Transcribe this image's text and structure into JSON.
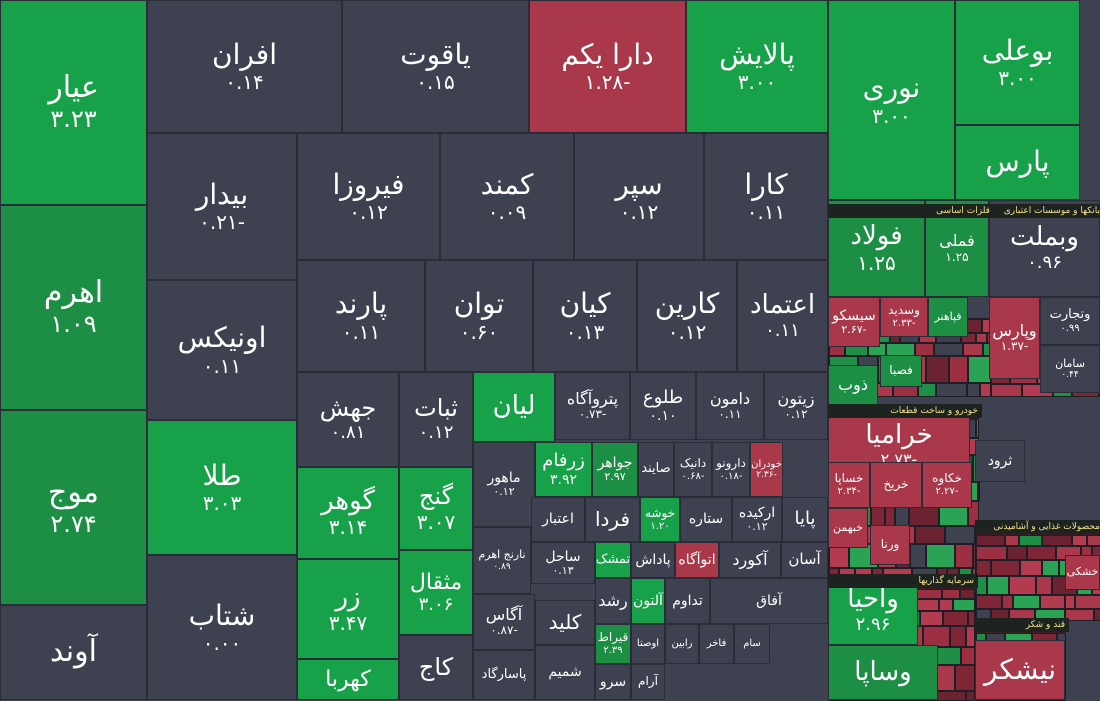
{
  "chart_data": {
    "type": "treemap",
    "colors": {
      "positive_strong": "#17a24a",
      "positive": "#1c8f45",
      "neutral": "#3d4150",
      "negative": "#a8384a",
      "sector_title_bg": "#1d2420",
      "sector_title_text": "#f3e08a"
    },
    "tiles": [
      {
        "name": "عیار",
        "value": "۳.۲۳",
        "c": "positive_strong"
      },
      {
        "name": "اهرم",
        "value": "۱.۰۹",
        "c": "positive"
      },
      {
        "name": "موج",
        "value": "۲.۷۴",
        "c": "positive"
      },
      {
        "name": "آوند",
        "value": "",
        "c": "neutral"
      },
      {
        "name": "افران",
        "value": "۰.۱۴",
        "c": "neutral"
      },
      {
        "name": "یاقوت",
        "value": "۰.۱۵",
        "c": "neutral"
      },
      {
        "name": "دارا یکم",
        "value": "-۱.۲۸",
        "c": "negative"
      },
      {
        "name": "پالایش",
        "value": "۳.۰۰",
        "c": "positive_strong"
      },
      {
        "name": "نوری",
        "value": "۳.۰۰",
        "c": "positive_strong"
      },
      {
        "name": "بوعلی",
        "value": "۳.۰۰",
        "c": "positive_strong"
      },
      {
        "name": "پارس",
        "value": "",
        "c": "positive_strong"
      },
      {
        "name": "بیدار",
        "value": "-۰.۲۱",
        "c": "neutral"
      },
      {
        "name": "فیروزا",
        "value": "۰.۱۲",
        "c": "neutral"
      },
      {
        "name": "کمند",
        "value": "۰.۰۹",
        "c": "neutral"
      },
      {
        "name": "سپر",
        "value": "۰.۱۲",
        "c": "neutral"
      },
      {
        "name": "کارا",
        "value": "۰.۱۱",
        "c": "neutral"
      },
      {
        "name": "اونیکس",
        "value": "۰.۱۱",
        "c": "neutral"
      },
      {
        "name": "پارند",
        "value": "۰.۱۱",
        "c": "neutral"
      },
      {
        "name": "توان",
        "value": "۰.۶۰",
        "c": "neutral"
      },
      {
        "name": "کیان",
        "value": "۰.۱۳",
        "c": "neutral"
      },
      {
        "name": "کارین",
        "value": "۰.۱۲",
        "c": "neutral"
      },
      {
        "name": "اعتماد",
        "value": "۰.۱۱",
        "c": "neutral"
      },
      {
        "name": "طلا",
        "value": "۳.۰۳",
        "c": "positive_strong"
      },
      {
        "name": "شتاب",
        "value": "۰.۰۰",
        "c": "neutral"
      },
      {
        "name": "جهش",
        "value": "۰.۸۱",
        "c": "neutral"
      },
      {
        "name": "ثبات",
        "value": "۰.۱۲",
        "c": "neutral"
      },
      {
        "name": "لیان",
        "value": "",
        "c": "positive_strong"
      },
      {
        "name": "پتروآگاه",
        "value": "-۰.۷۳",
        "c": "neutral"
      },
      {
        "name": "طلوع",
        "value": "۰.۱۰",
        "c": "neutral"
      },
      {
        "name": "دامون",
        "value": "۰.۱۱",
        "c": "neutral"
      },
      {
        "name": "زیتون",
        "value": "۰.۱۲",
        "c": "neutral"
      },
      {
        "name": "گوهر",
        "value": "۳.۱۴",
        "c": "positive_strong"
      },
      {
        "name": "گنج",
        "value": "۳.۰۷",
        "c": "positive_strong"
      },
      {
        "name": "زر",
        "value": "۳.۴۷",
        "c": "positive_strong"
      },
      {
        "name": "مثقال",
        "value": "۳.۰۶",
        "c": "positive_strong"
      },
      {
        "name": "کهربا",
        "value": "",
        "c": "positive_strong"
      },
      {
        "name": "کاج",
        "value": "",
        "c": "neutral"
      },
      {
        "name": "ماهور",
        "value": "۰.۱۲",
        "c": "neutral"
      },
      {
        "name": "زرفام",
        "value": "۳.۹۲",
        "c": "positive_strong"
      },
      {
        "name": "جواهر",
        "value": "۲.۹۷",
        "c": "positive"
      },
      {
        "name": "صایند",
        "value": "",
        "c": "neutral"
      },
      {
        "name": "دانیک",
        "value": "-۰.۶۸",
        "c": "neutral"
      },
      {
        "name": "دارونو",
        "value": "-۰.۱۸",
        "c": "neutral"
      },
      {
        "name": "خودران",
        "value": "-۲.۳۶",
        "c": "negative"
      },
      {
        "name": "نارنج اهرم",
        "value": "۰.۸۹",
        "c": "neutral"
      },
      {
        "name": "اعتبار",
        "value": "",
        "c": "neutral"
      },
      {
        "name": "فردا",
        "value": "",
        "c": "neutral"
      },
      {
        "name": "خوشه",
        "value": "۱.۲۰",
        "c": "positive_strong"
      },
      {
        "name": "ستاره",
        "value": "",
        "c": "neutral"
      },
      {
        "name": "ارکیده",
        "value": "۰.۱۲",
        "c": "neutral"
      },
      {
        "name": "پایا",
        "value": "",
        "c": "neutral"
      },
      {
        "name": "ساحل",
        "value": "۰.۱۳",
        "c": "neutral"
      },
      {
        "name": "تمشک",
        "value": "",
        "c": "positive_strong"
      },
      {
        "name": "پاداش",
        "value": "",
        "c": "neutral"
      },
      {
        "name": "اتوآگاه",
        "value": "",
        "c": "negative"
      },
      {
        "name": "آکورد",
        "value": "",
        "c": "neutral"
      },
      {
        "name": "آسان",
        "value": "",
        "c": "neutral"
      },
      {
        "name": "آگاس",
        "value": "-۰.۸۷",
        "c": "neutral"
      },
      {
        "name": "رشد",
        "value": "",
        "c": "neutral"
      },
      {
        "name": "آلتون",
        "value": "",
        "c": "positive_strong"
      },
      {
        "name": "تداوم",
        "value": "",
        "c": "neutral"
      },
      {
        "name": "آفاق",
        "value": "",
        "c": "neutral"
      },
      {
        "name": "کلید",
        "value": "",
        "c": "neutral"
      },
      {
        "name": "قیراط",
        "value": "۲.۳۹",
        "c": "positive"
      },
      {
        "name": "اوصتا",
        "value": "",
        "c": "neutral"
      },
      {
        "name": "رابین",
        "value": "",
        "c": "neutral"
      },
      {
        "name": "فاخر",
        "value": "",
        "c": "neutral"
      },
      {
        "name": "سام",
        "value": "",
        "c": "neutral"
      },
      {
        "name": "شمیم",
        "value": "",
        "c": "neutral"
      },
      {
        "name": "پاسارگاد",
        "value": "",
        "c": "neutral"
      },
      {
        "name": "سرو",
        "value": "",
        "c": "neutral"
      },
      {
        "name": "آرام",
        "value": "",
        "c": "neutral"
      },
      {
        "name": "فولاد",
        "value": "۱.۲۵",
        "c": "positive"
      },
      {
        "name": "فملی",
        "value": "۱.۲۵",
        "c": "positive"
      },
      {
        "name": "وبملت",
        "value": "۰.۹۶",
        "c": "neutral"
      },
      {
        "name": "سیسکو",
        "value": "-۲.۶۷",
        "c": "negative"
      },
      {
        "name": "وسدید",
        "value": "-۲.۳۳",
        "c": "negative"
      },
      {
        "name": "فپاهنر",
        "value": "",
        "c": "positive"
      },
      {
        "name": "وتجارت",
        "value": "۰.۹۹",
        "c": "neutral"
      },
      {
        "name": "وپارس",
        "value": "-۱.۳۷",
        "c": "negative"
      },
      {
        "name": "سامان",
        "value": "۰.۴۴",
        "c": "neutral"
      },
      {
        "name": "فصبا",
        "value": "",
        "c": "positive"
      },
      {
        "name": "ذوب",
        "value": "",
        "c": "positive"
      },
      {
        "name": "خرامیا",
        "value": "-۲.۷۳",
        "c": "negative"
      },
      {
        "name": "خساپا",
        "value": "-۲.۳۴",
        "c": "negative"
      },
      {
        "name": "خریخ",
        "value": "",
        "c": "negative"
      },
      {
        "name": "خکاوه",
        "value": "-۲.۲۷",
        "c": "negative"
      },
      {
        "name": "خبهمن",
        "value": "",
        "c": "negative"
      },
      {
        "name": "ورنا",
        "value": "",
        "c": "negative"
      },
      {
        "name": "ثرود",
        "value": "",
        "c": "neutral"
      },
      {
        "name": "واحیا",
        "value": "۲.۹۶",
        "c": "positive_strong"
      },
      {
        "name": "وساپا",
        "value": "",
        "c": "positive"
      },
      {
        "name": "نیشکر",
        "value": "",
        "c": "negative"
      },
      {
        "name": "خشکی",
        "value": "",
        "c": "negative"
      }
    ],
    "sectors": [
      {
        "label": "فلزات اساسی"
      },
      {
        "label": "بانکها و موسسات اعتباری"
      },
      {
        "label": "خودرو و ساخت قطعات"
      },
      {
        "label": "سرمایه گذاریها"
      },
      {
        "label": "قند و شکر"
      },
      {
        "label": "محصولات غذایی و آشامیدنی"
      }
    ]
  }
}
